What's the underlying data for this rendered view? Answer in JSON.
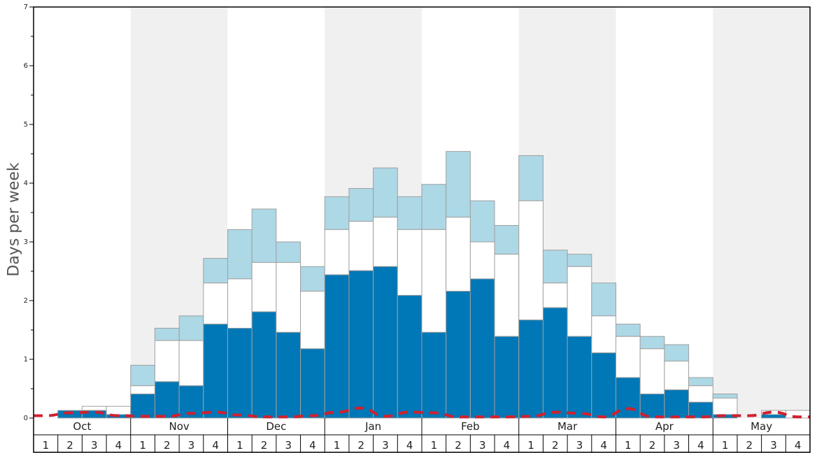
{
  "chart_data": {
    "type": "bar",
    "title": "",
    "ylabel": "Days per week",
    "xlabel": "",
    "ylim": [
      0,
      7
    ],
    "yticks": [
      "0",
      "1",
      "2",
      "3",
      "4",
      "5",
      "6",
      "7"
    ],
    "months": [
      "Oct",
      "Nov",
      "Dec",
      "Jan",
      "Feb",
      "Mar",
      "Apr",
      "May"
    ],
    "weeks": [
      "1",
      "2",
      "3",
      "4"
    ],
    "shaded_months": [
      "Nov",
      "Jan",
      "Mar",
      "May"
    ],
    "colors": {
      "dark": "#0077b6",
      "mid": "#ffffff",
      "light": "#add8e6",
      "line": "#d0202f",
      "shade": "#f0f0f0",
      "border": "#a0a0a0"
    },
    "series": [
      {
        "values": [
          0,
          0.13,
          0.13,
          0.06,
          0.41,
          0.62,
          0.55,
          1.6,
          1.53,
          1.81,
          1.46,
          1.18,
          2.44,
          2.51,
          2.58,
          2.09,
          1.46,
          2.16,
          2.37,
          1.39,
          1.67,
          1.88,
          1.39,
          1.11,
          0.69,
          0.41,
          0.48,
          0.27,
          0.06,
          0,
          0.06,
          0
        ]
      },
      {
        "values": [
          0,
          0.13,
          0.2,
          0.2,
          0.55,
          1.32,
          1.32,
          2.3,
          2.37,
          2.65,
          2.65,
          2.16,
          3.21,
          3.35,
          3.42,
          3.21,
          3.21,
          3.42,
          3.0,
          2.79,
          3.7,
          2.3,
          2.58,
          1.74,
          1.39,
          1.18,
          0.97,
          0.55,
          0.34,
          0,
          0.13,
          0.13
        ]
      },
      {
        "values": [
          0,
          0.13,
          0.2,
          0.2,
          0.9,
          1.53,
          1.74,
          2.72,
          3.21,
          3.56,
          3.0,
          2.58,
          3.77,
          3.91,
          4.26,
          3.77,
          3.98,
          4.54,
          3.7,
          3.28,
          4.47,
          2.86,
          2.79,
          2.3,
          1.6,
          1.39,
          1.25,
          0.69,
          0.41,
          0,
          0.13,
          0.13
        ]
      },
      {
        "values": [
          0.04,
          0.09,
          0.1,
          0.04,
          0.03,
          0.03,
          0.08,
          0.1,
          0.05,
          0.02,
          0.02,
          0.04,
          0.1,
          0.17,
          0.03,
          0.1,
          0.09,
          0.02,
          0.02,
          0.02,
          0.03,
          0.1,
          0.08,
          0.02,
          0.16,
          0.02,
          0.02,
          0.02,
          0.04,
          0.04,
          0.1,
          0.02
        ]
      }
    ]
  }
}
